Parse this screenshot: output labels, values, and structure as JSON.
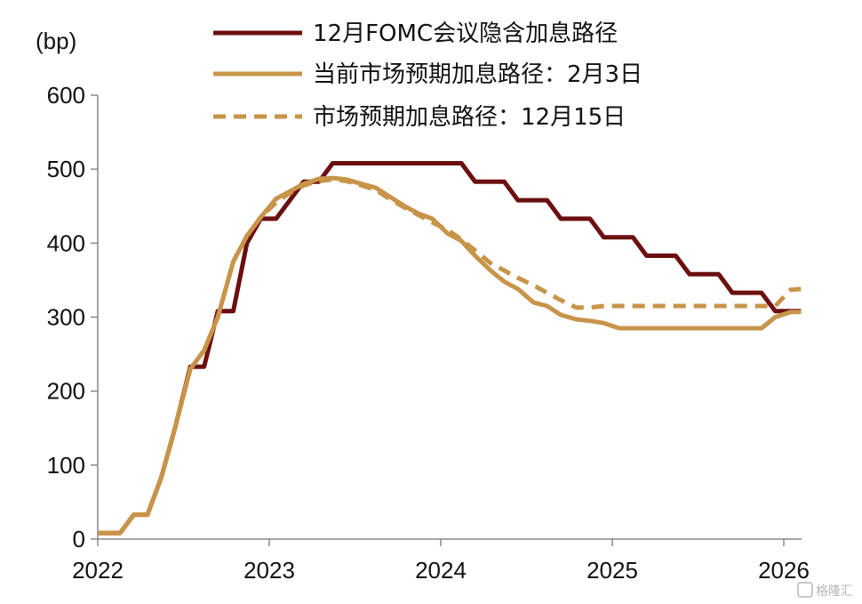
{
  "chart_data": {
    "type": "line",
    "ylabel": "(bp)",
    "ylim": [
      0,
      600
    ],
    "xlim": [
      2022.0,
      2026.1
    ],
    "y_ticks": [
      0,
      100,
      200,
      300,
      400,
      500,
      600
    ],
    "x_ticks": [
      2022,
      2023,
      2024,
      2025,
      2026
    ],
    "grid": false,
    "legend_position": "top-right",
    "series": [
      {
        "name": "12月FOMC会议隐含加息路径",
        "color": "#6b0f10",
        "style": "solid",
        "x": [
          2022.0,
          2022.13,
          2022.21,
          2022.29,
          2022.37,
          2022.45,
          2022.54,
          2022.62,
          2022.7,
          2022.79,
          2022.87,
          2022.95,
          2023.04,
          2023.12,
          2023.2,
          2023.29,
          2023.37,
          2023.45,
          2023.54,
          2023.62,
          2023.7,
          2023.79,
          2023.87,
          2023.95,
          2024.04,
          2024.12,
          2024.2,
          2024.29,
          2024.37,
          2024.45,
          2024.54,
          2024.62,
          2024.7,
          2024.79,
          2024.87,
          2024.95,
          2025.04,
          2025.12,
          2025.2,
          2025.29,
          2025.37,
          2025.45,
          2025.54,
          2025.62,
          2025.7,
          2025.79,
          2025.87,
          2025.95,
          2026.04,
          2026.1
        ],
        "y": [
          8,
          8,
          33,
          33,
          83,
          150,
          233,
          233,
          308,
          308,
          400,
          433,
          433,
          458,
          483,
          483,
          508,
          508,
          508,
          508,
          508,
          508,
          508,
          508,
          508,
          508,
          483,
          483,
          483,
          458,
          458,
          458,
          433,
          433,
          433,
          408,
          408,
          408,
          383,
          383,
          383,
          358,
          358,
          358,
          333,
          333,
          333,
          308,
          308,
          308
        ]
      },
      {
        "name": "当前市场预期加息路径：2月3日",
        "color": "#c8944a",
        "style": "solid",
        "x": [
          2022.0,
          2022.13,
          2022.21,
          2022.29,
          2022.37,
          2022.45,
          2022.54,
          2022.62,
          2022.7,
          2022.79,
          2022.87,
          2022.95,
          2023.04,
          2023.12,
          2023.2,
          2023.29,
          2023.37,
          2023.45,
          2023.54,
          2023.62,
          2023.7,
          2023.79,
          2023.87,
          2023.95,
          2024.04,
          2024.12,
          2024.2,
          2024.29,
          2024.37,
          2024.45,
          2024.54,
          2024.62,
          2024.7,
          2024.79,
          2024.87,
          2024.95,
          2025.04,
          2025.2,
          2025.37,
          2025.54,
          2025.7,
          2025.79,
          2025.87,
          2025.95,
          2026.04,
          2026.1
        ],
        "y": [
          8,
          8,
          33,
          33,
          83,
          150,
          230,
          255,
          300,
          375,
          410,
          435,
          460,
          470,
          480,
          487,
          488,
          486,
          480,
          475,
          463,
          450,
          440,
          433,
          413,
          403,
          383,
          363,
          348,
          338,
          320,
          315,
          303,
          297,
          295,
          292,
          285,
          285,
          285,
          285,
          285,
          285,
          285,
          300,
          307,
          307
        ]
      },
      {
        "name": "市场预期加息路径：12月15日",
        "color": "#c8944a",
        "style": "dashed",
        "x": [
          2022.0,
          2022.13,
          2022.21,
          2022.29,
          2022.37,
          2022.45,
          2022.54,
          2022.62,
          2022.7,
          2022.79,
          2022.87,
          2022.95,
          2023.04,
          2023.12,
          2023.2,
          2023.29,
          2023.37,
          2023.45,
          2023.54,
          2023.62,
          2023.7,
          2023.79,
          2023.87,
          2023.95,
          2024.04,
          2024.12,
          2024.2,
          2024.29,
          2024.37,
          2024.45,
          2024.54,
          2024.62,
          2024.7,
          2024.79,
          2024.87,
          2024.95,
          2025.04,
          2025.2,
          2025.37,
          2025.54,
          2025.7,
          2025.79,
          2025.87,
          2025.95,
          2026.04,
          2026.1
        ],
        "y": [
          8,
          8,
          33,
          33,
          83,
          150,
          230,
          255,
          300,
          375,
          410,
          435,
          455,
          468,
          478,
          484,
          486,
          484,
          478,
          472,
          460,
          448,
          438,
          428,
          418,
          405,
          390,
          373,
          363,
          353,
          343,
          333,
          323,
          313,
          313,
          315,
          315,
          315,
          315,
          315,
          315,
          315,
          315,
          315,
          337,
          338
        ]
      }
    ]
  },
  "watermark": "格隆汇"
}
